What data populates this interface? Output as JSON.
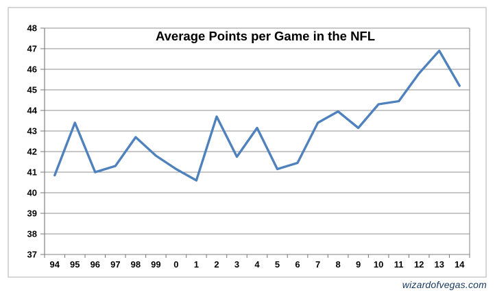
{
  "chart_data": {
    "type": "line",
    "title": "Average Points per Game in the NFL",
    "categories": [
      "94",
      "95",
      "96",
      "97",
      "98",
      "99",
      "0",
      "1",
      "2",
      "3",
      "4",
      "5",
      "6",
      "7",
      "8",
      "9",
      "10",
      "11",
      "12",
      "13",
      "14"
    ],
    "series": [
      {
        "name": "Average points per game",
        "values": [
          40.85,
          43.4,
          41.0,
          41.3,
          42.7,
          41.8,
          41.15,
          40.6,
          43.7,
          41.75,
          43.15,
          41.15,
          41.45,
          43.4,
          43.95,
          43.15,
          44.3,
          44.45,
          45.8,
          46.9,
          45.2
        ]
      }
    ],
    "xlabel": "",
    "ylabel": "",
    "ylim": [
      37,
      48
    ],
    "ytick_step": 1,
    "yticks": [
      "37",
      "38",
      "39",
      "40",
      "41",
      "42",
      "43",
      "44",
      "45",
      "46",
      "47",
      "48"
    ],
    "grid": "horizontal",
    "legend_position": "none",
    "line_color": "#4F81BD",
    "gridline_color": "#8F8F8F",
    "axis_color": "#808080",
    "frame_color": "#C6C6C6",
    "text_color": "#000000"
  },
  "watermark": {
    "text": "wizardofvegas.com",
    "color": "#17375E"
  }
}
